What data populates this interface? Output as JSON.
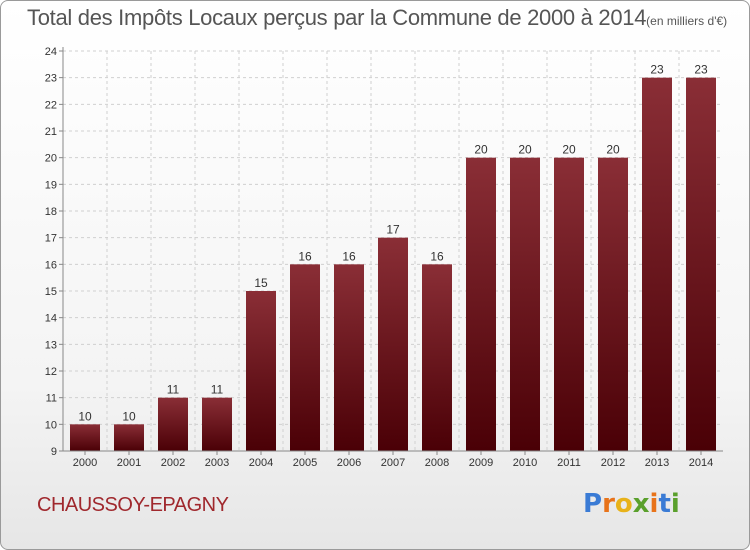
{
  "title": "Total des Impôts Locaux perçus par la Commune de 2000 à 2014",
  "unit_note": "(en milliers d'€)",
  "commune": "CHAUSSOY-EPAGNY",
  "logo": {
    "text": "Proxiti",
    "letters": [
      "P",
      "r",
      "o",
      "x",
      "i",
      "t",
      "i"
    ],
    "colors": [
      "#3a7bd5",
      "#e8731a",
      "#e8b21a",
      "#5aa02c",
      "#e8731a",
      "#3a7bd5",
      "#5aa02c"
    ]
  },
  "chart_data": {
    "type": "bar",
    "title": "Total des Impôts Locaux perçus par la Commune de 2000 à 2014",
    "xlabel": "",
    "ylabel": "",
    "categories": [
      "2000",
      "2001",
      "2002",
      "2003",
      "2004",
      "2005",
      "2006",
      "2007",
      "2008",
      "2009",
      "2010",
      "2011",
      "2012",
      "2013",
      "2014"
    ],
    "values": [
      10,
      10,
      11,
      11,
      15,
      16,
      16,
      17,
      16,
      20,
      20,
      20,
      20,
      23,
      23
    ],
    "ylim": [
      9,
      24
    ],
    "yticks": [
      9,
      10,
      11,
      12,
      13,
      14,
      15,
      16,
      17,
      18,
      19,
      20,
      21,
      22,
      23,
      24
    ],
    "grid": true,
    "bar_color": "#7a1e26"
  }
}
